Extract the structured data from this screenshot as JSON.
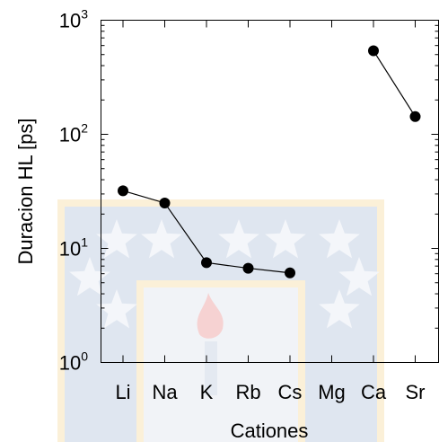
{
  "chart_data": {
    "type": "line",
    "xlabel": "Cationes",
    "ylabel": "Duracion HL [ps]",
    "yscale": "log",
    "ylim": [
      1,
      1000
    ],
    "yticks": [
      {
        "base": "10",
        "exp": "0",
        "value": 1
      },
      {
        "base": "10",
        "exp": "1",
        "value": 10
      },
      {
        "base": "10",
        "exp": "2",
        "value": 100
      },
      {
        "base": "10",
        "exp": "3",
        "value": 1000
      }
    ],
    "categories": [
      "Li",
      "Na",
      "K",
      "Rb",
      "Cs",
      "Mg",
      "Ca",
      "Sr"
    ],
    "values": [
      32,
      25,
      7.5,
      6.7,
      6.1,
      null,
      540,
      143
    ],
    "marker_color": "#000000",
    "line_color": "#000000",
    "grid": false
  },
  "watermark": {
    "colors": {
      "blue": "#dfe6f0",
      "gold": "#fbf0d8",
      "flame": "#f6d2d2"
    }
  }
}
